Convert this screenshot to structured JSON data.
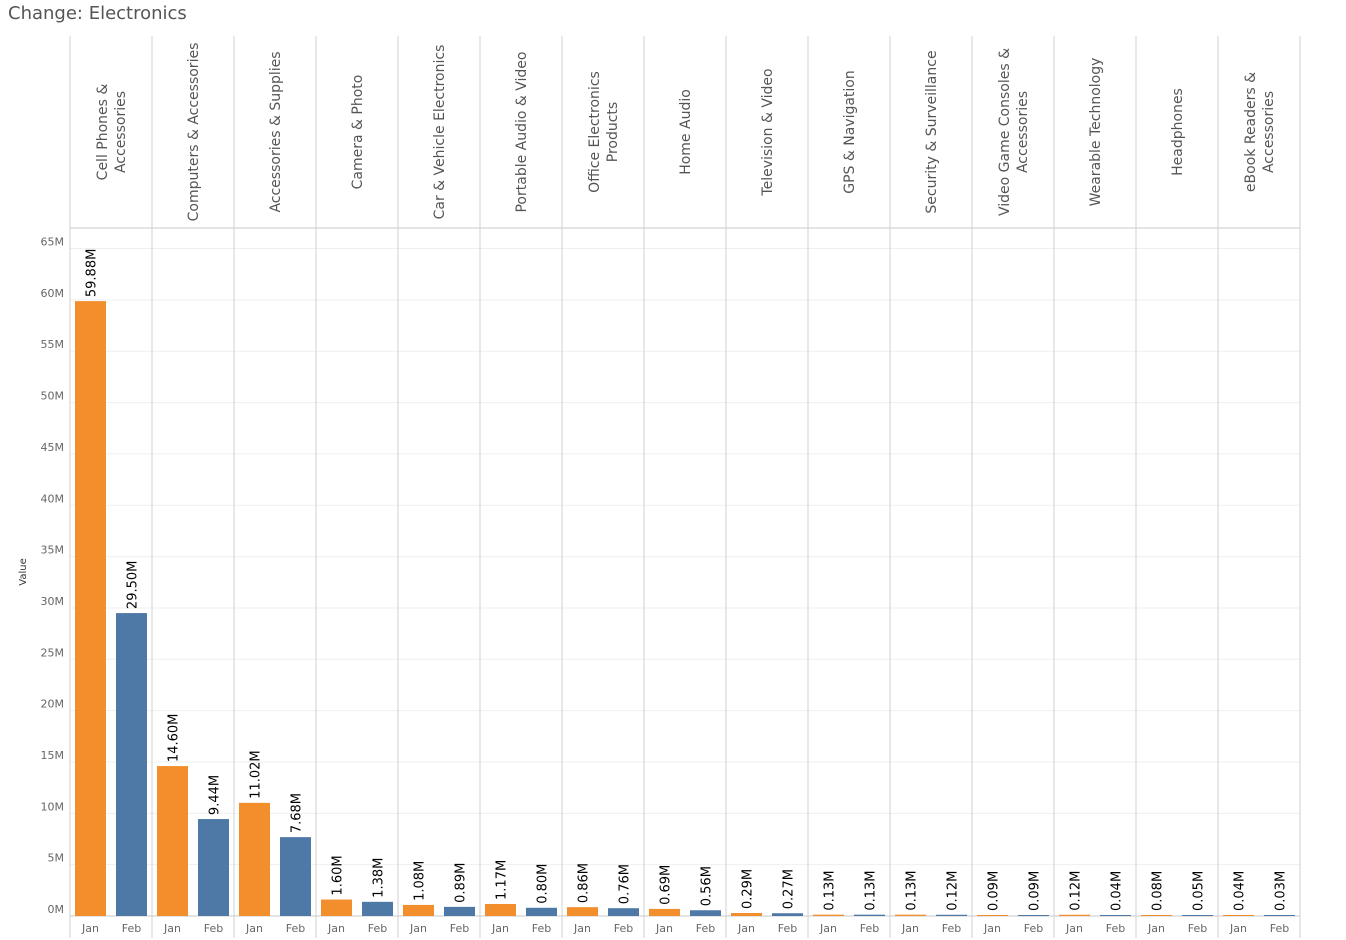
{
  "title": "Change: Electronics",
  "chart_data": {
    "type": "bar",
    "ylabel": "Value",
    "ylim": [
      0,
      67000000
    ],
    "yticks": [
      {
        "v": 0,
        "label": "0M"
      },
      {
        "v": 5000000,
        "label": "5M"
      },
      {
        "v": 10000000,
        "label": "10M"
      },
      {
        "v": 15000000,
        "label": "15M"
      },
      {
        "v": 20000000,
        "label": "20M"
      },
      {
        "v": 25000000,
        "label": "25M"
      },
      {
        "v": 30000000,
        "label": "30M"
      },
      {
        "v": 35000000,
        "label": "35M"
      },
      {
        "v": 40000000,
        "label": "40M"
      },
      {
        "v": 45000000,
        "label": "45M"
      },
      {
        "v": 50000000,
        "label": "50M"
      },
      {
        "v": 55000000,
        "label": "55M"
      },
      {
        "v": 60000000,
        "label": "60M"
      },
      {
        "v": 65000000,
        "label": "65M"
      }
    ],
    "months": [
      "Jan",
      "Feb"
    ],
    "colors": {
      "Jan": "#F28E2B",
      "Feb": "#4E79A7"
    },
    "grid": true,
    "categories": [
      {
        "name": [
          "Cell Phones &",
          "Accessories"
        ],
        "values": [
          59880000,
          29500000
        ],
        "labels": [
          "59.88M",
          "29.50M"
        ]
      },
      {
        "name": [
          "Computers & Accessories"
        ],
        "values": [
          14600000,
          9440000
        ],
        "labels": [
          "14.60M",
          "9.44M"
        ]
      },
      {
        "name": [
          "Accessories & Supplies"
        ],
        "values": [
          11020000,
          7680000
        ],
        "labels": [
          "11.02M",
          "7.68M"
        ]
      },
      {
        "name": [
          "Camera & Photo"
        ],
        "values": [
          1600000,
          1380000
        ],
        "labels": [
          "1.60M",
          "1.38M"
        ]
      },
      {
        "name": [
          "Car & Vehicle Electronics"
        ],
        "values": [
          1080000,
          890000
        ],
        "labels": [
          "1.08M",
          "0.89M"
        ]
      },
      {
        "name": [
          "Portable Audio & Video"
        ],
        "values": [
          1170000,
          800000
        ],
        "labels": [
          "1.17M",
          "0.80M"
        ]
      },
      {
        "name": [
          "Office Electronics",
          "Products"
        ],
        "values": [
          860000,
          760000
        ],
        "labels": [
          "0.86M",
          "0.76M"
        ]
      },
      {
        "name": [
          "Home Audio"
        ],
        "values": [
          690000,
          560000
        ],
        "labels": [
          "0.69M",
          "0.56M"
        ]
      },
      {
        "name": [
          "Television & Video"
        ],
        "values": [
          290000,
          270000
        ],
        "labels": [
          "0.29M",
          "0.27M"
        ]
      },
      {
        "name": [
          "GPS & Navigation"
        ],
        "values": [
          130000,
          130000
        ],
        "labels": [
          "0.13M",
          "0.13M"
        ]
      },
      {
        "name": [
          "Security & Surveillance"
        ],
        "values": [
          130000,
          120000
        ],
        "labels": [
          "0.13M",
          "0.12M"
        ]
      },
      {
        "name": [
          "Video Game Consoles &",
          "Accessories"
        ],
        "values": [
          90000,
          90000
        ],
        "labels": [
          "0.09M",
          "0.09M"
        ]
      },
      {
        "name": [
          "Wearable Technology"
        ],
        "values": [
          120000,
          40000
        ],
        "labels": [
          "0.12M",
          "0.04M"
        ]
      },
      {
        "name": [
          "Headphones"
        ],
        "values": [
          80000,
          50000
        ],
        "labels": [
          "0.08M",
          "0.05M"
        ]
      },
      {
        "name": [
          "eBook Readers &",
          "Accessories"
        ],
        "values": [
          40000,
          30000
        ],
        "labels": [
          "0.04M",
          "0.03M"
        ]
      }
    ]
  }
}
